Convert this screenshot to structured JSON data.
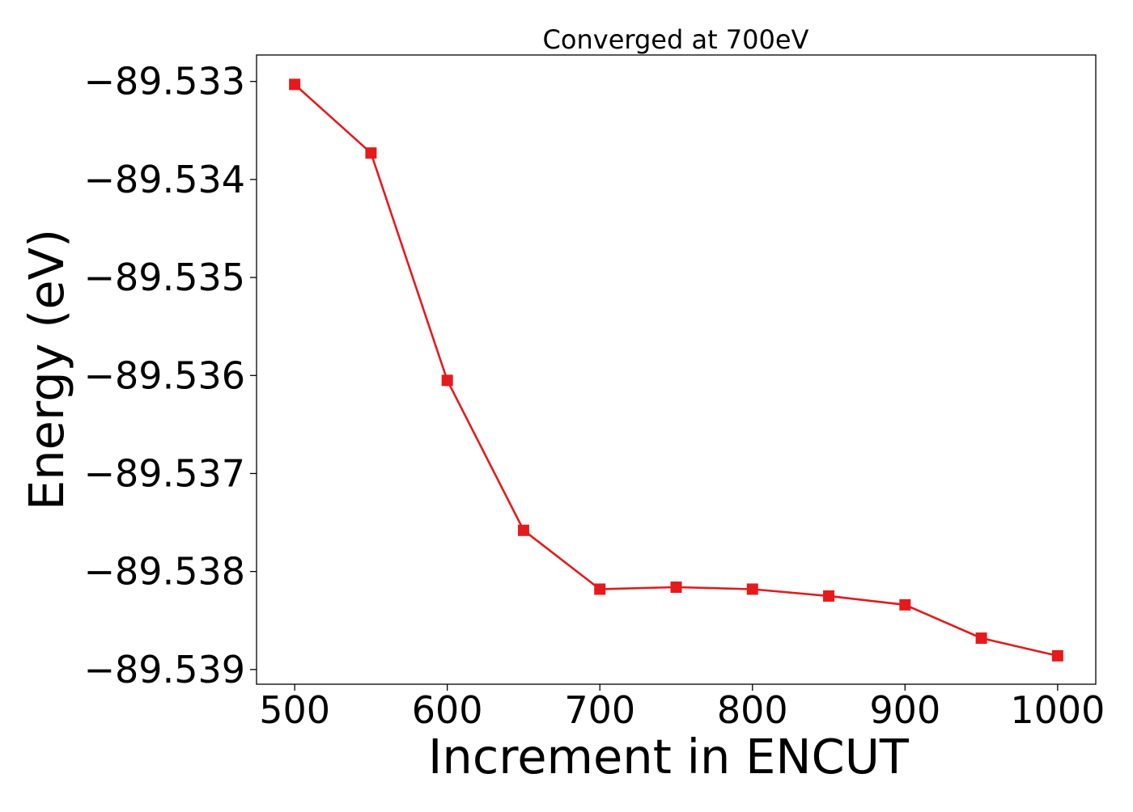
{
  "chart_data": {
    "type": "line",
    "title": "Converged at 700eV",
    "xlabel": "Increment in ENCUT",
    "ylabel": "Energy (eV)",
    "x": [
      500,
      550,
      600,
      650,
      700,
      750,
      800,
      850,
      900,
      950,
      1000
    ],
    "series": [
      {
        "color": "#e41a1c",
        "marker": "square",
        "values": [
          -89.53303,
          -89.53373,
          -89.53605,
          -89.53758,
          -89.53818,
          -89.53816,
          -89.53818,
          -89.53825,
          -89.53834,
          -89.53868,
          -89.53886
        ]
      }
    ],
    "xticks": [
      500,
      600,
      700,
      800,
      900,
      1000
    ],
    "xtick_labels": [
      "500",
      "600",
      "700",
      "800",
      "900",
      "1000"
    ],
    "yticks": [
      -89.533,
      -89.534,
      -89.535,
      -89.536,
      -89.537,
      -89.538,
      -89.539
    ],
    "ytick_labels": [
      "−89.533",
      "−89.534",
      "−89.535",
      "−89.536",
      "−89.537",
      "−89.538",
      "−89.539"
    ],
    "xlim": [
      475,
      1025
    ],
    "ylim": [
      -89.53915,
      -89.53273
    ],
    "grid": false,
    "legend": "none"
  }
}
